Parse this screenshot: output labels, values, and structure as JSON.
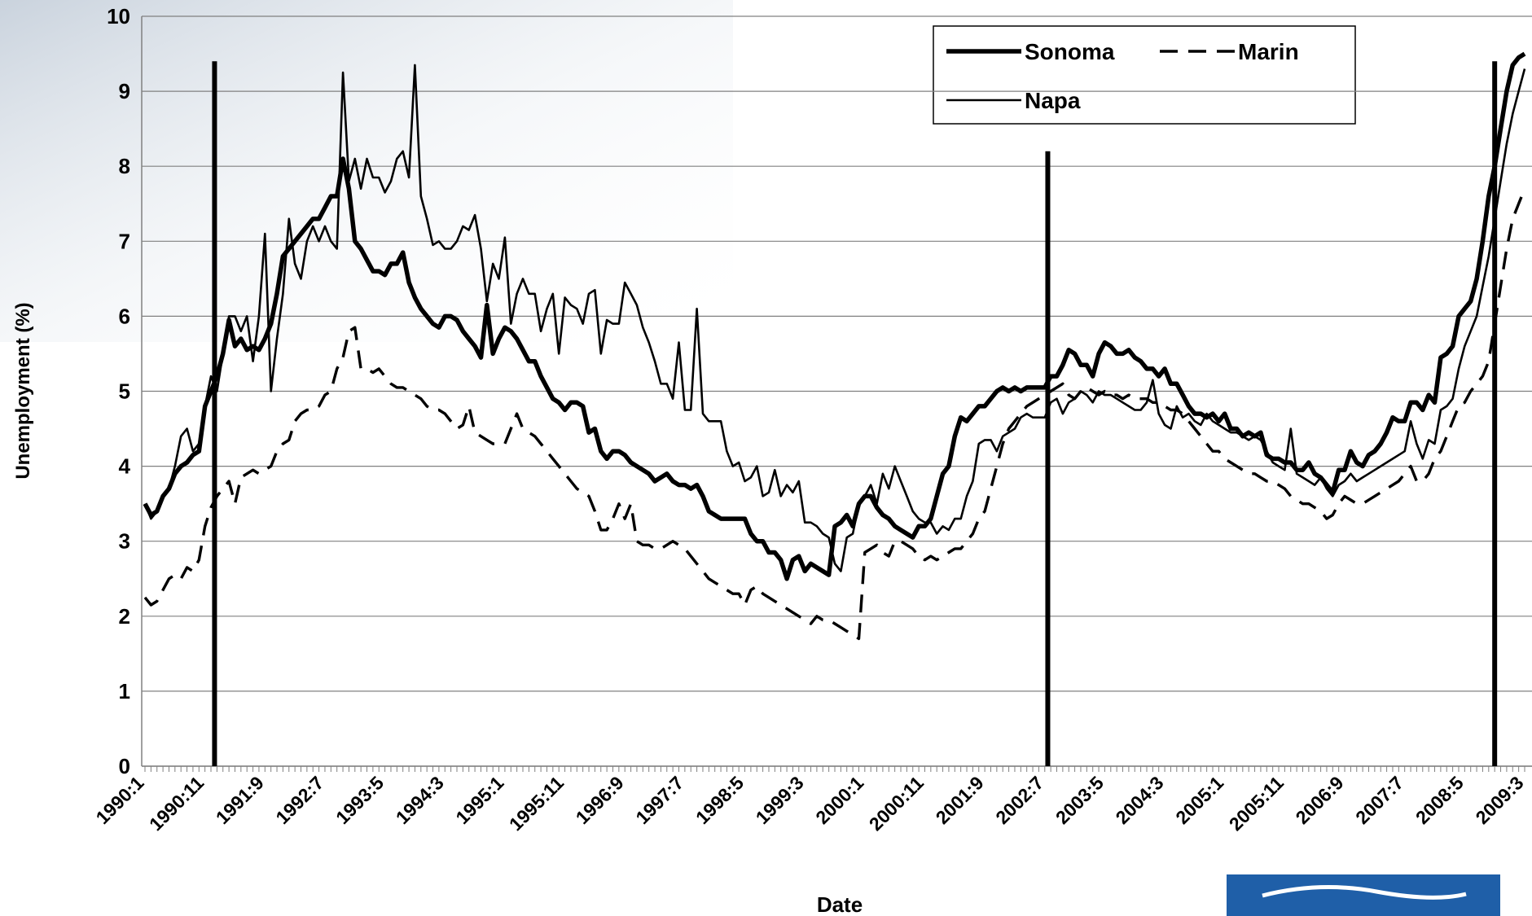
{
  "chart_data": {
    "type": "line",
    "xlabel": "Date",
    "ylabel": "Unemployment (%)",
    "ylim": [
      0,
      10
    ],
    "yticks": [
      0,
      1,
      2,
      3,
      4,
      5,
      6,
      7,
      8,
      9,
      10
    ],
    "grid": true,
    "categories": [
      "1990:1",
      null,
      null,
      null,
      null,
      null,
      null,
      null,
      null,
      null,
      "1990:11",
      null,
      null,
      null,
      null,
      null,
      null,
      null,
      null,
      null,
      "1991:9",
      null,
      null,
      null,
      null,
      null,
      null,
      null,
      null,
      null,
      "1992:7",
      null,
      null,
      null,
      null,
      null,
      null,
      null,
      null,
      null,
      "1993:5",
      null,
      null,
      null,
      null,
      null,
      null,
      null,
      null,
      null,
      "1994:3",
      null,
      null,
      null,
      null,
      null,
      null,
      null,
      null,
      null,
      "1995:1",
      null,
      null,
      null,
      null,
      null,
      null,
      null,
      null,
      null,
      "1995:11",
      null,
      null,
      null,
      null,
      null,
      null,
      null,
      null,
      null,
      "1996:9",
      null,
      null,
      null,
      null,
      null,
      null,
      null,
      null,
      null,
      "1997:7",
      null,
      null,
      null,
      null,
      null,
      null,
      null,
      null,
      null,
      "1998:5",
      null,
      null,
      null,
      null,
      null,
      null,
      null,
      null,
      null,
      "1999:3",
      null,
      null,
      null,
      null,
      null,
      null,
      null,
      null,
      null,
      "2000:1",
      null,
      null,
      null,
      null,
      null,
      null,
      null,
      null,
      null,
      "2000:11",
      null,
      null,
      null,
      null,
      null,
      null,
      null,
      null,
      null,
      "2001:9",
      null,
      null,
      null,
      null,
      null,
      null,
      null,
      null,
      null,
      "2002:7",
      null,
      null,
      null,
      null,
      null,
      null,
      null,
      null,
      null,
      "2003:5",
      null,
      null,
      null,
      null,
      null,
      null,
      null,
      null,
      null,
      "2004:3",
      null,
      null,
      null,
      null,
      null,
      null,
      null,
      null,
      null,
      "2005:1",
      null,
      null,
      null,
      null,
      null,
      null,
      null,
      null,
      null,
      "2005:11",
      null,
      null,
      null,
      null,
      null,
      null,
      null,
      null,
      null,
      "2006:9",
      null,
      null,
      null,
      null,
      null,
      null,
      null,
      null,
      null,
      "2007:7",
      null,
      null,
      null,
      null,
      null,
      null,
      null,
      null,
      null,
      "2008:5",
      null,
      null,
      null,
      null,
      null,
      null,
      null,
      null,
      null,
      "2009:3"
    ],
    "series": [
      {
        "name": "Sonoma",
        "color": "#000000",
        "style": "thick",
        "values": [
          3.5,
          3.35,
          3.4,
          3.6,
          3.7,
          3.9,
          4.0,
          4.05,
          4.15,
          4.2,
          4.8,
          5.0,
          5.2,
          5.5,
          5.95,
          5.6,
          5.7,
          5.55,
          5.6,
          5.55,
          5.7,
          5.9,
          6.3,
          6.8,
          6.9,
          7.0,
          7.1,
          7.2,
          7.3,
          7.3,
          7.45,
          7.6,
          7.6,
          8.1,
          7.7,
          7.0,
          6.9,
          6.75,
          6.6,
          6.6,
          6.55,
          6.7,
          6.7,
          6.85,
          6.45,
          6.25,
          6.1,
          6.0,
          5.9,
          5.85,
          6.0,
          6.0,
          5.95,
          5.8,
          5.7,
          5.6,
          5.45,
          6.15,
          5.5,
          5.7,
          5.85,
          5.8,
          5.7,
          5.55,
          5.4,
          5.4,
          5.2,
          5.05,
          4.9,
          4.85,
          4.75,
          4.85,
          4.85,
          4.8,
          4.45,
          4.5,
          4.2,
          4.1,
          4.2,
          4.2,
          4.15,
          4.05,
          4.0,
          3.95,
          3.9,
          3.8,
          3.85,
          3.9,
          3.8,
          3.75,
          3.75,
          3.7,
          3.75,
          3.6,
          3.4,
          3.35,
          3.3,
          3.3,
          3.3,
          3.3,
          3.3,
          3.1,
          3.0,
          3.0,
          2.85,
          2.85,
          2.75,
          2.5,
          2.75,
          2.8,
          2.6,
          2.7,
          2.65,
          2.6,
          2.55,
          3.2,
          3.25,
          3.35,
          3.2,
          3.5,
          3.6,
          3.6,
          3.45,
          3.35,
          3.3,
          3.2,
          3.15,
          3.1,
          3.05,
          3.2,
          3.2,
          3.3,
          3.6,
          3.9,
          4.0,
          4.4,
          4.65,
          4.6,
          4.7,
          4.8,
          4.8,
          4.9,
          5.0,
          5.05,
          5.0,
          5.05,
          5.0,
          5.05,
          5.05,
          5.05,
          5.05,
          5.2,
          5.2,
          5.35,
          5.55,
          5.5,
          5.35,
          5.35,
          5.2,
          5.5,
          5.65,
          5.6,
          5.5,
          5.5,
          5.55,
          5.45,
          5.4,
          5.3,
          5.3,
          5.2,
          5.3,
          5.1,
          5.1,
          4.95,
          4.8,
          4.7,
          4.7,
          4.65,
          4.7,
          4.6,
          4.7,
          4.5,
          4.5,
          4.4,
          4.45,
          4.4,
          4.45,
          4.15,
          4.1,
          4.1,
          4.05,
          4.05,
          3.95,
          3.95,
          4.05,
          3.9,
          3.85,
          3.75,
          3.65,
          3.95,
          3.95,
          4.2,
          4.05,
          4.0,
          4.15,
          4.2,
          4.3,
          4.45,
          4.65,
          4.6,
          4.6,
          4.85,
          4.85,
          4.75,
          4.95,
          4.85,
          5.45,
          5.5,
          5.6,
          6.0,
          6.1,
          6.2,
          6.5,
          7.0,
          7.6,
          8.0,
          8.5,
          9.0,
          9.35,
          9.45,
          9.5
        ]
      },
      {
        "name": "Marin",
        "color": "#000000",
        "style": "dashed",
        "values": [
          2.25,
          2.15,
          2.2,
          2.35,
          2.5,
          2.55,
          2.5,
          2.65,
          2.6,
          2.75,
          3.2,
          3.45,
          3.6,
          3.7,
          3.8,
          3.5,
          3.85,
          3.9,
          3.95,
          3.9,
          3.95,
          4.0,
          4.2,
          4.3,
          4.35,
          4.6,
          4.7,
          4.75,
          4.75,
          4.8,
          4.95,
          5.0,
          5.3,
          5.45,
          5.8,
          5.85,
          5.3,
          5.3,
          5.25,
          5.3,
          5.2,
          5.1,
          5.05,
          5.05,
          5.0,
          4.95,
          4.9,
          4.8,
          4.75,
          4.75,
          4.7,
          4.6,
          4.5,
          4.55,
          4.8,
          4.45,
          4.4,
          4.35,
          4.3,
          4.3,
          4.3,
          4.5,
          4.7,
          4.5,
          4.45,
          4.4,
          4.3,
          4.2,
          4.1,
          4.0,
          3.9,
          3.8,
          3.7,
          3.65,
          3.6,
          3.4,
          3.15,
          3.15,
          3.3,
          3.5,
          3.3,
          3.5,
          3.0,
          2.95,
          2.95,
          2.9,
          2.9,
          2.95,
          3.0,
          2.95,
          2.9,
          2.8,
          2.7,
          2.6,
          2.5,
          2.45,
          2.4,
          2.35,
          2.3,
          2.3,
          2.15,
          2.35,
          2.4,
          2.3,
          2.25,
          2.2,
          2.15,
          2.1,
          2.05,
          2.0,
          1.95,
          1.9,
          2.0,
          1.95,
          1.95,
          1.9,
          1.85,
          1.8,
          1.75,
          1.7,
          2.85,
          2.9,
          2.95,
          2.85,
          2.8,
          3.0,
          3.0,
          2.95,
          2.9,
          2.8,
          2.75,
          2.8,
          2.75,
          2.8,
          2.85,
          2.9,
          2.9,
          3.0,
          3.1,
          3.3,
          3.4,
          3.7,
          4.0,
          4.3,
          4.5,
          4.6,
          4.7,
          4.8,
          4.85,
          4.9,
          4.95,
          5.0,
          5.05,
          5.1,
          4.95,
          4.9,
          5.0,
          5.05,
          5.0,
          4.95,
          5.0,
          4.95,
          4.95,
          4.9,
          4.95,
          4.9,
          4.9,
          4.9,
          4.85,
          4.85,
          4.8,
          4.75,
          4.75,
          4.7,
          4.6,
          4.5,
          4.4,
          4.3,
          4.2,
          4.2,
          4.1,
          4.05,
          4.0,
          3.95,
          3.9,
          3.9,
          3.85,
          3.8,
          3.8,
          3.75,
          3.7,
          3.6,
          3.55,
          3.5,
          3.5,
          3.45,
          3.4,
          3.3,
          3.35,
          3.5,
          3.6,
          3.55,
          3.5,
          3.5,
          3.55,
          3.6,
          3.65,
          3.7,
          3.75,
          3.8,
          3.9,
          4.0,
          3.8,
          3.8,
          3.9,
          4.1,
          4.2,
          4.4,
          4.6,
          4.8,
          4.85,
          5.0,
          5.1,
          5.2,
          5.4,
          5.9,
          6.4,
          6.9,
          7.3,
          7.5,
          7.7
        ]
      },
      {
        "name": "Napa",
        "color": "#000000",
        "style": "thin",
        "values": [
          3.5,
          3.3,
          3.4,
          3.6,
          3.7,
          4.0,
          4.4,
          4.5,
          4.2,
          4.3,
          4.8,
          5.2,
          5.0,
          5.5,
          6.0,
          6.0,
          5.8,
          6.0,
          5.4,
          6.0,
          7.1,
          5.0,
          5.7,
          6.3,
          7.3,
          6.7,
          6.5,
          7.0,
          7.2,
          7.0,
          7.2,
          7.0,
          6.9,
          9.25,
          7.8,
          8.1,
          7.7,
          8.1,
          7.85,
          7.85,
          7.65,
          7.8,
          8.1,
          8.2,
          7.85,
          9.35,
          7.6,
          7.3,
          6.95,
          7.0,
          6.9,
          6.9,
          7.0,
          7.2,
          7.15,
          7.35,
          6.9,
          6.2,
          6.7,
          6.5,
          7.05,
          5.9,
          6.3,
          6.5,
          6.3,
          6.3,
          5.8,
          6.1,
          6.3,
          5.5,
          6.25,
          6.15,
          6.1,
          5.9,
          6.3,
          6.35,
          5.5,
          5.95,
          5.9,
          5.9,
          6.45,
          6.3,
          6.15,
          5.85,
          5.65,
          5.4,
          5.1,
          5.1,
          4.9,
          5.65,
          4.75,
          4.75,
          6.1,
          4.7,
          4.6,
          4.6,
          4.6,
          4.2,
          4.0,
          4.05,
          3.8,
          3.85,
          4.0,
          3.6,
          3.65,
          3.95,
          3.6,
          3.75,
          3.65,
          3.8,
          3.25,
          3.25,
          3.2,
          3.1,
          3.05,
          2.7,
          2.6,
          3.05,
          3.1,
          3.5,
          3.6,
          3.75,
          3.5,
          3.9,
          3.7,
          4.0,
          3.8,
          3.6,
          3.4,
          3.3,
          3.25,
          3.25,
          3.1,
          3.2,
          3.15,
          3.3,
          3.3,
          3.6,
          3.8,
          4.3,
          4.35,
          4.35,
          4.2,
          4.4,
          4.45,
          4.5,
          4.65,
          4.7,
          4.65,
          4.65,
          4.65,
          4.85,
          4.9,
          4.7,
          4.85,
          4.9,
          5.0,
          4.95,
          4.85,
          5.0,
          4.95,
          4.95,
          4.9,
          4.85,
          4.8,
          4.75,
          4.75,
          4.85,
          5.15,
          4.7,
          4.55,
          4.5,
          4.8,
          4.65,
          4.7,
          4.6,
          4.55,
          4.7,
          4.6,
          4.55,
          4.5,
          4.45,
          4.45,
          4.4,
          4.35,
          4.4,
          4.35,
          4.2,
          4.05,
          4.0,
          3.95,
          4.5,
          3.9,
          3.85,
          3.8,
          3.75,
          3.85,
          3.7,
          3.6,
          3.75,
          3.8,
          3.9,
          3.8,
          3.85,
          3.9,
          3.95,
          4.0,
          4.05,
          4.1,
          4.15,
          4.2,
          4.6,
          4.3,
          4.1,
          4.35,
          4.3,
          4.75,
          4.8,
          4.9,
          5.3,
          5.6,
          5.8,
          6.0,
          6.4,
          6.8,
          7.3,
          7.8,
          8.3,
          8.7,
          9.0,
          9.3
        ]
      }
    ],
    "vlines": [
      {
        "x": 11.6,
        "y": 9.4
      },
      {
        "x": 150.5,
        "y": 8.2
      },
      {
        "x": 225,
        "y": 9.4
      }
    ]
  }
}
